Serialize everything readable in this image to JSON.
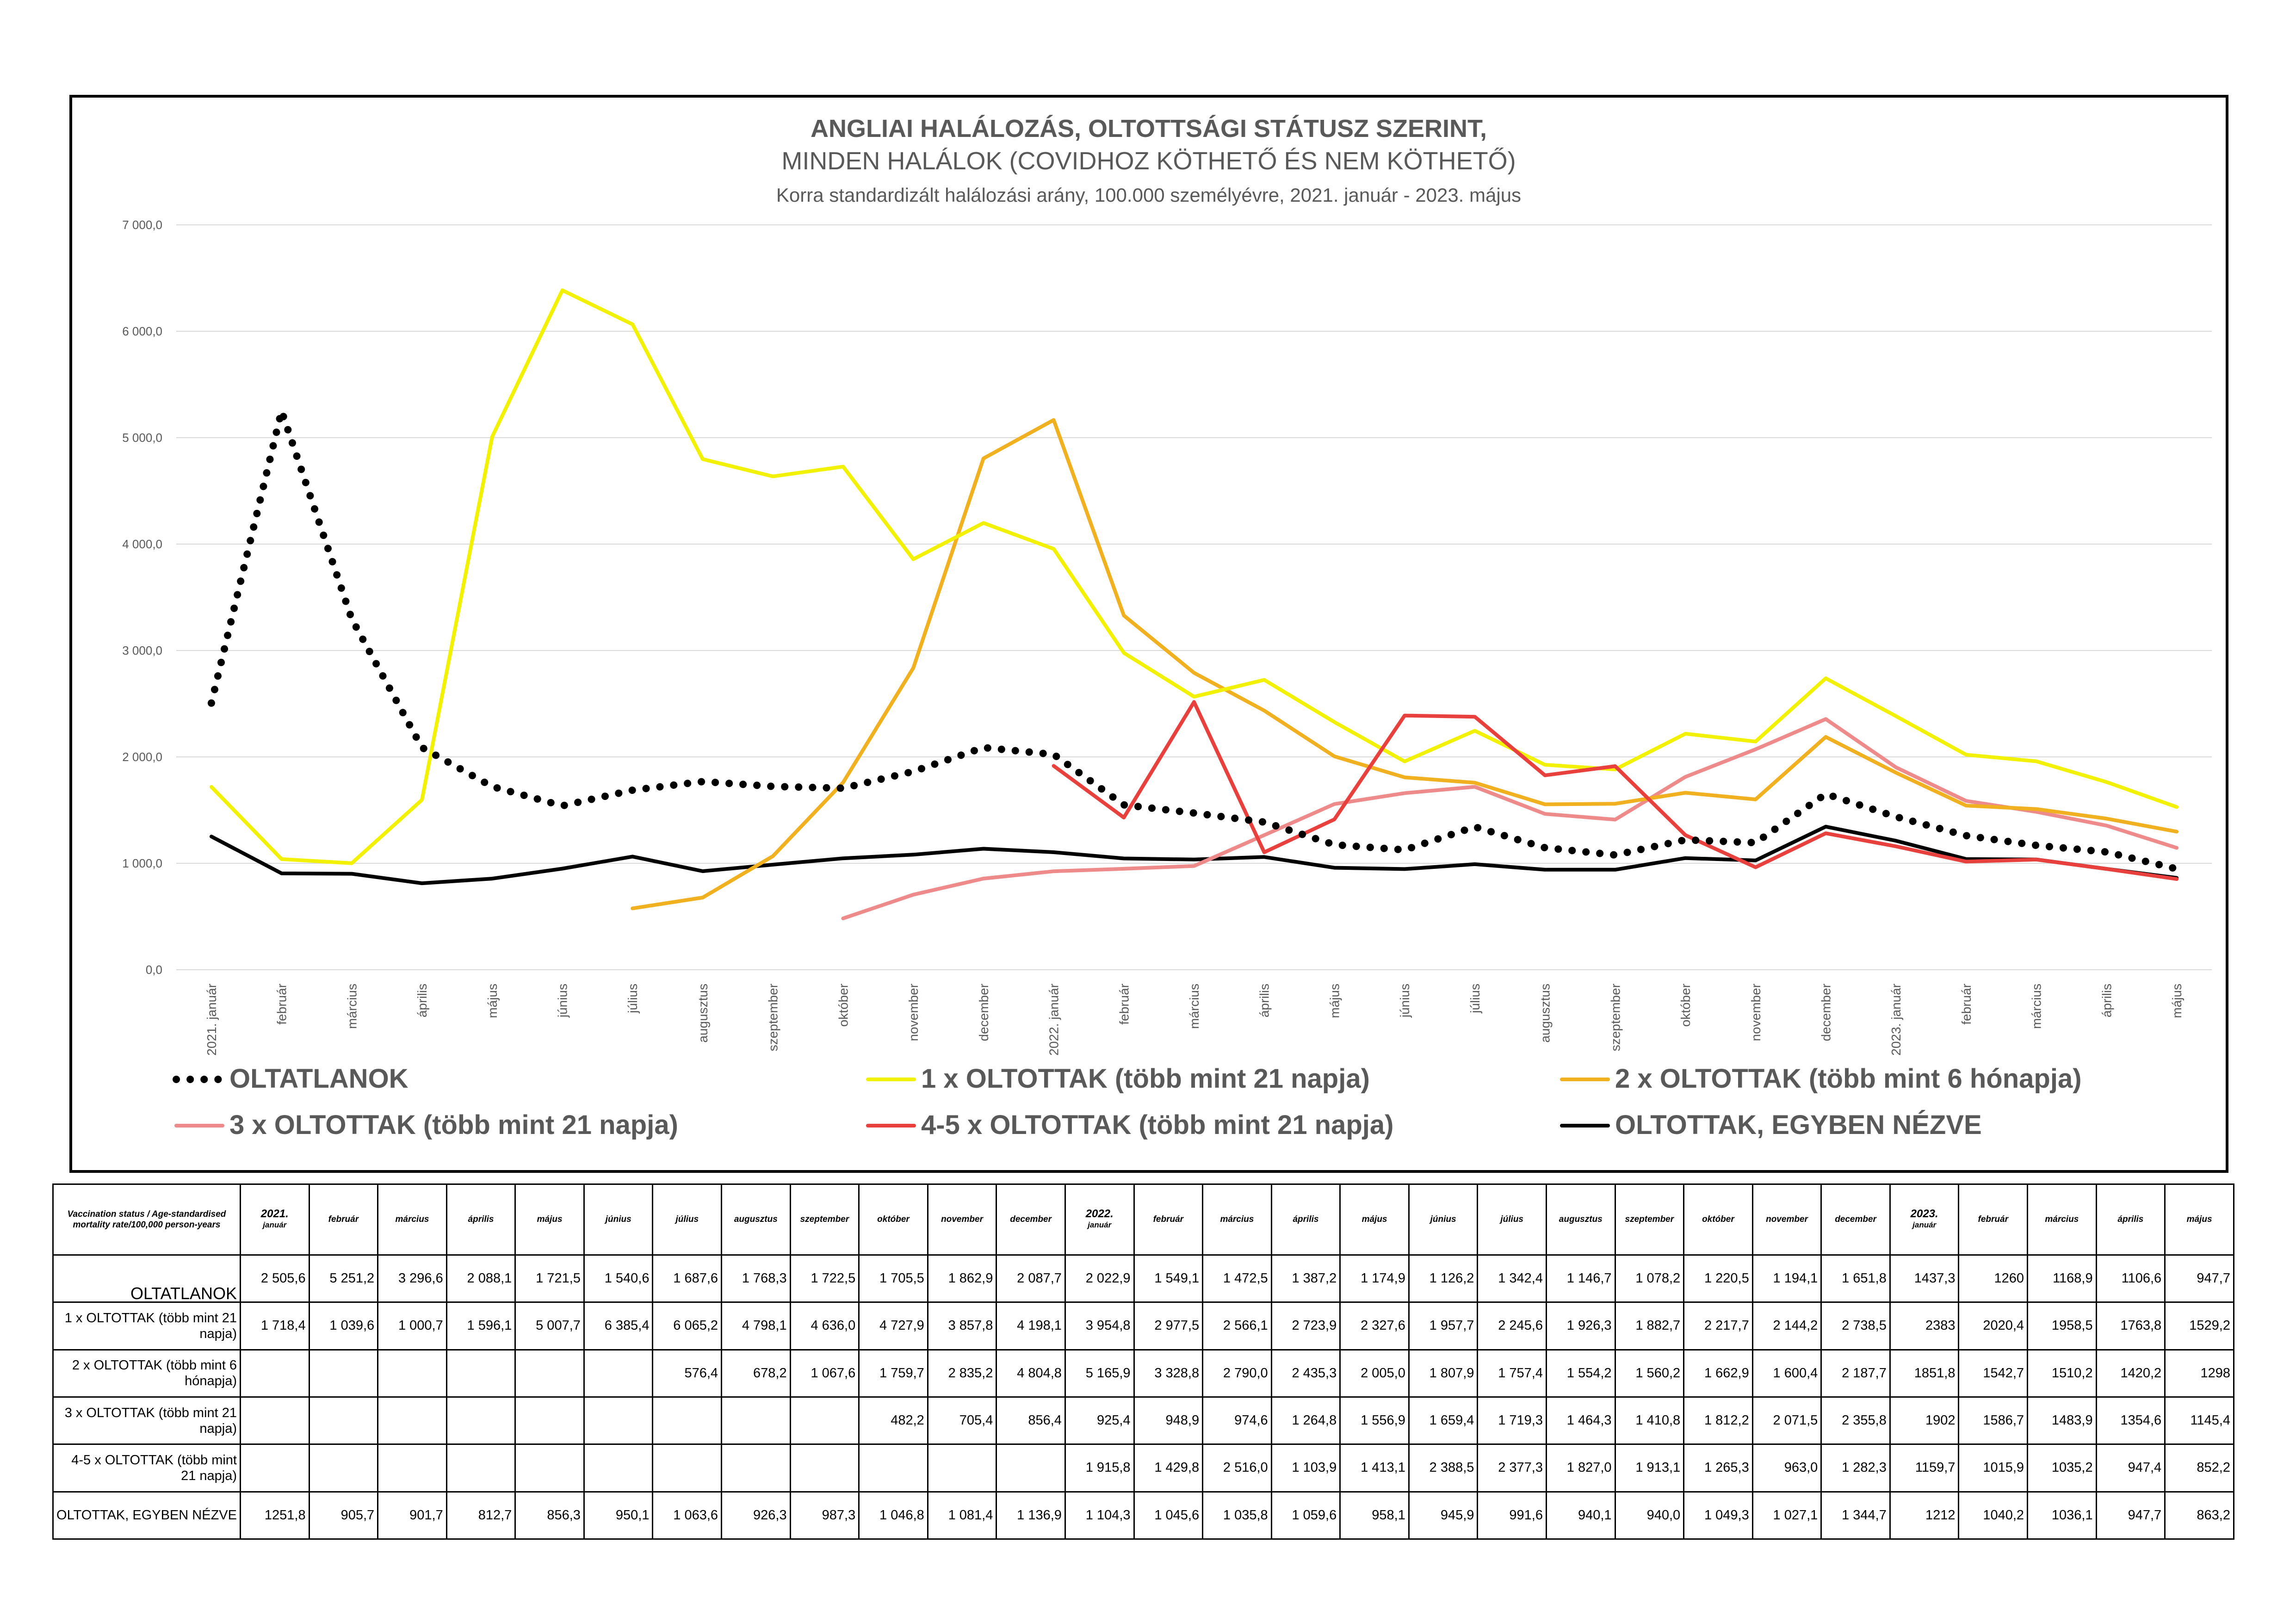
{
  "chart_data": {
    "type": "line",
    "title": "ANGLIAI HALÁLOZÁS, OLTOTTSÁGI STÁTUSZ SZERINT,",
    "subtitle": "MINDEN HALÁLOK (COVIDHOZ KÖTHETŐ ÉS NEM KÖTHETŐ)",
    "subtitle2": "Korra standardizált halálozási arány, 100.000 személyévre, 2021. január - 2023. május",
    "xlabel": "",
    "ylabel": "",
    "ylim": [
      0,
      7000
    ],
    "yticks": [
      "0,0",
      "1 000,0",
      "2 000,0",
      "3 000,0",
      "4 000,0",
      "5 000,0",
      "6 000,0",
      "7 000,0"
    ],
    "grid": true,
    "legend_position": "bottom",
    "categories": [
      "2021. január",
      "február",
      "március",
      "április",
      "május",
      "június",
      "július",
      "augusztus",
      "szeptember",
      "október",
      "november",
      "december",
      "2022. január",
      "február",
      "március",
      "április",
      "május",
      "június",
      "július",
      "augusztus",
      "szeptember",
      "október",
      "november",
      "december",
      "2023. január",
      "február",
      "március",
      "április",
      "május"
    ],
    "series": [
      {
        "name": "OLTATLANOK",
        "color": "#000000",
        "style": "dotted",
        "values": [
          2505.6,
          5251.2,
          3296.6,
          2088.1,
          1721.5,
          1540.6,
          1687.6,
          1768.3,
          1722.5,
          1705.5,
          1862.9,
          2087.7,
          2022.9,
          1549.1,
          1472.5,
          1387.2,
          1174.9,
          1126.2,
          1342.4,
          1146.7,
          1078.2,
          1220.5,
          1194.1,
          1651.8,
          1437.3,
          1260,
          1168.9,
          1106.6,
          947.7
        ]
      },
      {
        "name": "1 x OLTOTTAK  (több mint 21 napja)",
        "color": "#f2f200",
        "style": "solid",
        "values": [
          1718.4,
          1039.6,
          1000.7,
          1596.1,
          5007.7,
          6385.4,
          6065.2,
          4798.1,
          4636.0,
          4727.9,
          3857.8,
          4198.1,
          3954.8,
          2977.5,
          2566.1,
          2723.9,
          2327.6,
          1957.7,
          2245.6,
          1926.3,
          1882.7,
          2217.7,
          2144.2,
          2738.5,
          2383,
          2020.4,
          1958.5,
          1763.8,
          1529.2
        ]
      },
      {
        "name": "2 x OLTOTTAK (több mint 6 hónapja)",
        "color": "#f0b020",
        "style": "solid",
        "values": [
          null,
          null,
          null,
          null,
          null,
          null,
          576.4,
          678.2,
          1067.6,
          1759.7,
          2835.2,
          4804.8,
          5165.9,
          3328.8,
          2790.0,
          2435.3,
          2005.0,
          1807.9,
          1757.4,
          1554.2,
          1560.2,
          1662.9,
          1600.4,
          2187.7,
          1851.8,
          1542.7,
          1510.2,
          1420.2,
          1298
        ]
      },
      {
        "name": "3 x OLTOTTAK (több mint 21 napja)",
        "color": "#ee8a8a",
        "style": "solid",
        "values": [
          null,
          null,
          null,
          null,
          null,
          null,
          null,
          null,
          null,
          482.2,
          705.4,
          856.4,
          925.4,
          948.9,
          974.6,
          1264.8,
          1556.9,
          1659.4,
          1719.3,
          1464.3,
          1410.8,
          1812.2,
          2071.5,
          2355.8,
          1902,
          1586.7,
          1483.9,
          1354.6,
          1145.4
        ]
      },
      {
        "name": "4-5 x OLTOTTAK (több mint 21 napja)",
        "color": "#e8403c",
        "style": "solid",
        "values": [
          null,
          null,
          null,
          null,
          null,
          null,
          null,
          null,
          null,
          null,
          null,
          null,
          1915.8,
          1429.8,
          2516.0,
          1103.9,
          1413.1,
          2388.5,
          2377.3,
          1827.0,
          1913.1,
          1265.3,
          963.0,
          1282.3,
          1159.7,
          1015.9,
          1035.2,
          947.4,
          852.2
        ]
      },
      {
        "name": "OLTOTTAK, EGYBEN NÉZVE",
        "color": "#000000",
        "style": "solid",
        "values": [
          1251.8,
          905.7,
          901.7,
          812.7,
          856.3,
          950.1,
          1063.6,
          926.3,
          987.3,
          1046.8,
          1081.4,
          1136.9,
          1104.3,
          1045.6,
          1035.8,
          1059.6,
          958.1,
          945.9,
          991.6,
          940.1,
          940.0,
          1049.3,
          1027.1,
          1344.7,
          1212,
          1040.2,
          1036.1,
          947.7,
          863.2
        ]
      }
    ]
  },
  "table": {
    "corner_label": "Vaccination status / Age-standardised mortality rate/100,000 person-years",
    "headers": [
      {
        "main": "2021.",
        "sub": "január"
      },
      {
        "main": "február"
      },
      {
        "main": "március"
      },
      {
        "main": "április"
      },
      {
        "main": "május"
      },
      {
        "main": "június"
      },
      {
        "main": "július"
      },
      {
        "main": "augusztus"
      },
      {
        "main": "szeptember"
      },
      {
        "main": "október"
      },
      {
        "main": "november"
      },
      {
        "main": "december"
      },
      {
        "main": "2022.",
        "sub": "január"
      },
      {
        "main": "február"
      },
      {
        "main": "március"
      },
      {
        "main": "április"
      },
      {
        "main": "május"
      },
      {
        "main": "június"
      },
      {
        "main": "július"
      },
      {
        "main": "augusztus"
      },
      {
        "main": "szeptember"
      },
      {
        "main": "október"
      },
      {
        "main": "november"
      },
      {
        "main": "december"
      },
      {
        "main": "2023.",
        "sub": "január"
      },
      {
        "main": "február"
      },
      {
        "main": "március"
      },
      {
        "main": "április"
      },
      {
        "main": "május"
      }
    ],
    "rows": [
      {
        "label": "OLTATLANOK",
        "big": true,
        "cells": [
          "2 505,6",
          "5 251,2",
          "3 296,6",
          "2 088,1",
          "1 721,5",
          "1 540,6",
          "1 687,6",
          "1 768,3",
          "1 722,5",
          "1 705,5",
          "1 862,9",
          "2 087,7",
          "2 022,9",
          "1 549,1",
          "1 472,5",
          "1 387,2",
          "1 174,9",
          "1 126,2",
          "1 342,4",
          "1 146,7",
          "1 078,2",
          "1 220,5",
          "1 194,1",
          "1 651,8",
          "1437,3",
          "1260",
          "1168,9",
          "1106,6",
          "947,7"
        ]
      },
      {
        "label": "1 x OLTOTTAK  (több mint 21 napja)",
        "cells": [
          "1 718,4",
          "1 039,6",
          "1 000,7",
          "1 596,1",
          "5 007,7",
          "6 385,4",
          "6 065,2",
          "4 798,1",
          "4 636,0",
          "4 727,9",
          "3 857,8",
          "4 198,1",
          "3 954,8",
          "2 977,5",
          "2 566,1",
          "2 723,9",
          "2 327,6",
          "1 957,7",
          "2 245,6",
          "1 926,3",
          "1 882,7",
          "2 217,7",
          "2 144,2",
          "2 738,5",
          "2383",
          "2020,4",
          "1958,5",
          "1763,8",
          "1529,2"
        ]
      },
      {
        "label": "2 x OLTOTTAK (több mint 6 hónapja)",
        "cells": [
          "",
          "",
          "",
          "",
          "",
          "",
          "576,4",
          "678,2",
          "1 067,6",
          "1 759,7",
          "2 835,2",
          "4 804,8",
          "5 165,9",
          "3 328,8",
          "2 790,0",
          "2 435,3",
          "2 005,0",
          "1 807,9",
          "1 757,4",
          "1 554,2",
          "1 560,2",
          "1 662,9",
          "1 600,4",
          "2 187,7",
          "1851,8",
          "1542,7",
          "1510,2",
          "1420,2",
          "1298"
        ]
      },
      {
        "label": "3 x OLTOTTAK (több mint 21 napja)",
        "cells": [
          "",
          "",
          "",
          "",
          "",
          "",
          "",
          "",
          "",
          "482,2",
          "705,4",
          "856,4",
          "925,4",
          "948,9",
          "974,6",
          "1 264,8",
          "1 556,9",
          "1 659,4",
          "1 719,3",
          "1 464,3",
          "1 410,8",
          "1 812,2",
          "2 071,5",
          "2 355,8",
          "1902",
          "1586,7",
          "1483,9",
          "1354,6",
          "1145,4"
        ]
      },
      {
        "label": "4-5 x OLTOTTAK (több mint 21 napja)",
        "cells": [
          "",
          "",
          "",
          "",
          "",
          "",
          "",
          "",
          "",
          "",
          "",
          "",
          "1 915,8",
          "1 429,8",
          "2 516,0",
          "1 103,9",
          "1 413,1",
          "2 388,5",
          "2 377,3",
          "1 827,0",
          "1 913,1",
          "1 265,3",
          "963,0",
          "1 282,3",
          "1159,7",
          "1015,9",
          "1035,2",
          "947,4",
          "852,2"
        ]
      },
      {
        "label": "OLTOTTAK, EGYBEN NÉZVE",
        "cells": [
          "1251,8",
          "905,7",
          "901,7",
          "812,7",
          "856,3",
          "950,1",
          "1 063,6",
          "926,3",
          "987,3",
          "1 046,8",
          "1 081,4",
          "1 136,9",
          "1 104,3",
          "1 045,6",
          "1 035,8",
          "1 059,6",
          "958,1",
          "945,9",
          "991,6",
          "940,1",
          "940,0",
          "1 049,3",
          "1 027,1",
          "1 344,7",
          "1212",
          "1040,2",
          "1036,1",
          "947,7",
          "863,2"
        ]
      }
    ]
  }
}
